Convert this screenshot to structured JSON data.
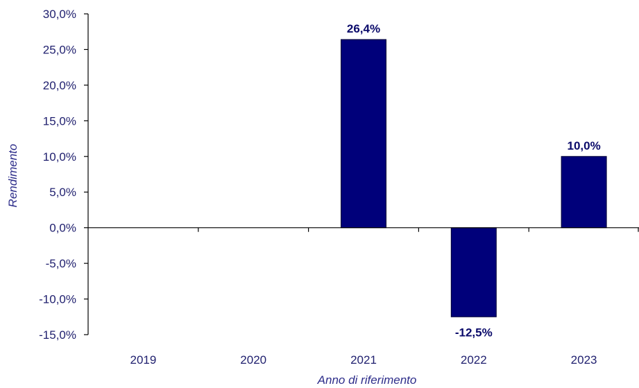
{
  "chart_data": {
    "type": "bar",
    "categories": [
      "2019",
      "2020",
      "2021",
      "2022",
      "2023"
    ],
    "values": [
      null,
      null,
      26.4,
      -12.5,
      10.0
    ],
    "data_labels": [
      "",
      "",
      "26,4%",
      "-12,5%",
      "10,0%"
    ],
    "title": "",
    "xlabel": "Anno di riferimento",
    "ylabel": "Rendimento",
    "ylim": [
      -15,
      30
    ],
    "yticks": [
      30,
      25,
      20,
      15,
      10,
      5,
      0,
      -5,
      -10,
      -15
    ],
    "ytick_labels": [
      "30,0%",
      "25,0%",
      "20,0%",
      "15,0%",
      "10,0%",
      "5,0%",
      "0,0%",
      "-5,0%",
      "-10,0%",
      "-15,0%"
    ],
    "grid": false,
    "legend": "none",
    "colors": {
      "bar": "#00007a",
      "bar_edge": "#000033",
      "axis": "#000000",
      "text": "#1f1f6e",
      "label": "#0a0a6a"
    }
  }
}
